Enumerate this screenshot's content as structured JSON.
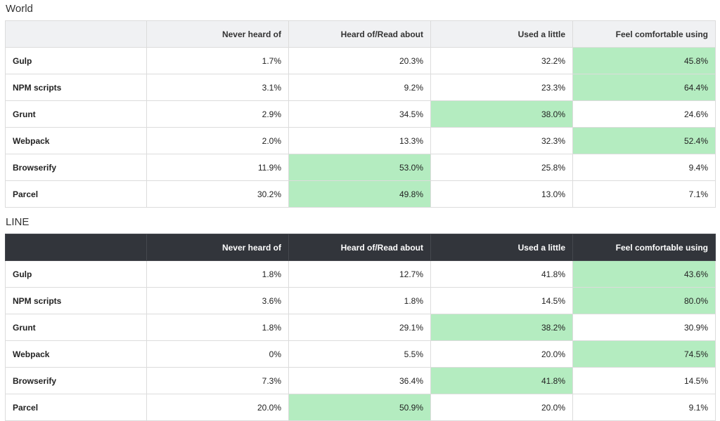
{
  "columns": [
    "",
    "Never heard of",
    "Heard of/Read about",
    "Used a little",
    "Feel comfortable using"
  ],
  "highlight_color": "#b4ecc0",
  "sections": [
    {
      "title": "World",
      "rows": [
        {
          "label": "Gulp",
          "values": [
            "1.7%",
            "20.3%",
            "32.2%",
            "45.8%"
          ],
          "highlight": 3
        },
        {
          "label": "NPM scripts",
          "values": [
            "3.1%",
            "9.2%",
            "23.3%",
            "64.4%"
          ],
          "highlight": 3
        },
        {
          "label": "Grunt",
          "values": [
            "2.9%",
            "34.5%",
            "38.0%",
            "24.6%"
          ],
          "highlight": 2
        },
        {
          "label": "Webpack",
          "values": [
            "2.0%",
            "13.3%",
            "32.3%",
            "52.4%"
          ],
          "highlight": 3
        },
        {
          "label": "Browserify",
          "values": [
            "11.9%",
            "53.0%",
            "25.8%",
            "9.4%"
          ],
          "highlight": 1
        },
        {
          "label": "Parcel",
          "values": [
            "30.2%",
            "49.8%",
            "13.0%",
            "7.1%"
          ],
          "highlight": 1
        }
      ]
    },
    {
      "title": "LINE",
      "rows": [
        {
          "label": "Gulp",
          "values": [
            "1.8%",
            "12.7%",
            "41.8%",
            "43.6%"
          ],
          "highlight": 3
        },
        {
          "label": "NPM scripts",
          "values": [
            "3.6%",
            "1.8%",
            "14.5%",
            "80.0%"
          ],
          "highlight": 3
        },
        {
          "label": "Grunt",
          "values": [
            "1.8%",
            "29.1%",
            "38.2%",
            "30.9%"
          ],
          "highlight": 2
        },
        {
          "label": "Webpack",
          "values": [
            "0%",
            "5.5%",
            "20.0%",
            "74.5%"
          ],
          "highlight": 3
        },
        {
          "label": "Browserify",
          "values": [
            "7.3%",
            "36.4%",
            "41.8%",
            "14.5%"
          ],
          "highlight": 2
        },
        {
          "label": "Parcel",
          "values": [
            "20.0%",
            "50.9%",
            "20.0%",
            "9.1%"
          ],
          "highlight": 1
        }
      ]
    }
  ]
}
